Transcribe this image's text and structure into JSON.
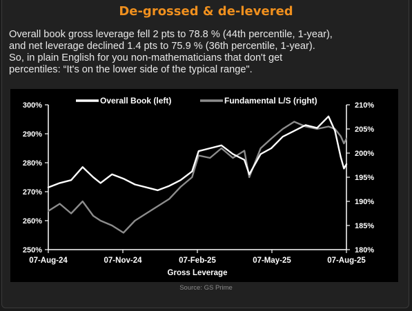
{
  "header": {
    "title": "De-grossed & de-levered"
  },
  "description": {
    "lines": [
      "Overall book gross leverage fell 2 pts to 78.8 % (44th percentile, 1-year),",
      "and net leverage declined 1.4 pts to 75.9 % (36th percentile, 1-year).",
      "So, in plain English for you non-mathematicians that don't get",
      "percentiles: “It's on the lower side of the typical range\"."
    ]
  },
  "source": "Source: GS Prime",
  "colors": {
    "title": "#f0901e",
    "overall_series": "#ffffff",
    "fundamental_series": "#8c8c8c",
    "chart_background": "#000000"
  },
  "chart_data": {
    "type": "line",
    "title": "",
    "xlabel": "Gross Leverage",
    "x_tick_labels": [
      "07-Aug-24",
      "07-Nov-24",
      "07-Feb-25",
      "07-May-25",
      "07-Aug-25"
    ],
    "x_range": [
      "2024-08-07",
      "2025-08-07"
    ],
    "left_axis": {
      "ylim": [
        250,
        300
      ],
      "ticks": [
        300,
        290,
        280,
        270,
        260,
        250
      ],
      "tick_labels": [
        "300%",
        "290%",
        "280%",
        "270%",
        "260%",
        "250%"
      ]
    },
    "right_axis": {
      "ylim": [
        180,
        210
      ],
      "ticks": [
        210,
        205,
        200,
        195,
        190,
        185,
        180
      ],
      "tick_labels": [
        "210%",
        "205%",
        "200%",
        "195%",
        "190%",
        "185%",
        "180%"
      ]
    },
    "legend": {
      "placement": "top"
    },
    "grid": false,
    "series": [
      {
        "name": "Overall Book (left)",
        "axis": "left",
        "x": [
          "2024-08-07",
          "2024-08-21",
          "2024-09-04",
          "2024-09-18",
          "2024-10-01",
          "2024-10-10",
          "2024-10-24",
          "2024-11-07",
          "2024-11-21",
          "2024-12-05",
          "2024-12-19",
          "2025-01-02",
          "2025-01-16",
          "2025-01-30",
          "2025-02-07",
          "2025-02-21",
          "2025-03-07",
          "2025-03-21",
          "2025-04-04",
          "2025-04-10",
          "2025-04-24",
          "2025-05-07",
          "2025-05-21",
          "2025-06-04",
          "2025-06-18",
          "2025-07-02",
          "2025-07-16",
          "2025-07-24",
          "2025-07-31",
          "2025-08-04",
          "2025-08-07"
        ],
        "values": [
          271.5,
          273.0,
          274.0,
          278.5,
          275.0,
          273.0,
          276.0,
          274.5,
          272.5,
          271.5,
          270.5,
          272.0,
          274.0,
          277.0,
          284.0,
          285.0,
          286.0,
          283.0,
          281.0,
          276.0,
          283.0,
          285.0,
          289.0,
          291.0,
          293.0,
          292.0,
          296.0,
          291.0,
          282.0,
          278.0,
          279.5
        ]
      },
      {
        "name": "Fundamental L/S (right)",
        "axis": "right",
        "x": [
          "2024-08-07",
          "2024-08-21",
          "2024-09-04",
          "2024-09-18",
          "2024-10-01",
          "2024-10-10",
          "2024-10-24",
          "2024-11-07",
          "2024-11-21",
          "2024-12-05",
          "2024-12-19",
          "2025-01-02",
          "2025-01-16",
          "2025-01-30",
          "2025-02-07",
          "2025-02-21",
          "2025-03-07",
          "2025-03-21",
          "2025-04-04",
          "2025-04-10",
          "2025-04-24",
          "2025-05-07",
          "2025-05-21",
          "2025-06-04",
          "2025-06-18",
          "2025-07-02",
          "2025-07-16",
          "2025-07-24",
          "2025-07-31",
          "2025-08-04",
          "2025-08-07"
        ],
        "values": [
          188.0,
          189.5,
          187.5,
          190.0,
          187.0,
          186.0,
          185.0,
          183.5,
          186.0,
          187.5,
          189.0,
          190.5,
          193.0,
          195.0,
          199.5,
          199.0,
          201.0,
          199.0,
          200.5,
          195.0,
          201.0,
          203.0,
          205.0,
          206.5,
          205.5,
          205.0,
          205.5,
          205.0,
          203.5,
          202.0,
          203.0
        ]
      }
    ]
  }
}
